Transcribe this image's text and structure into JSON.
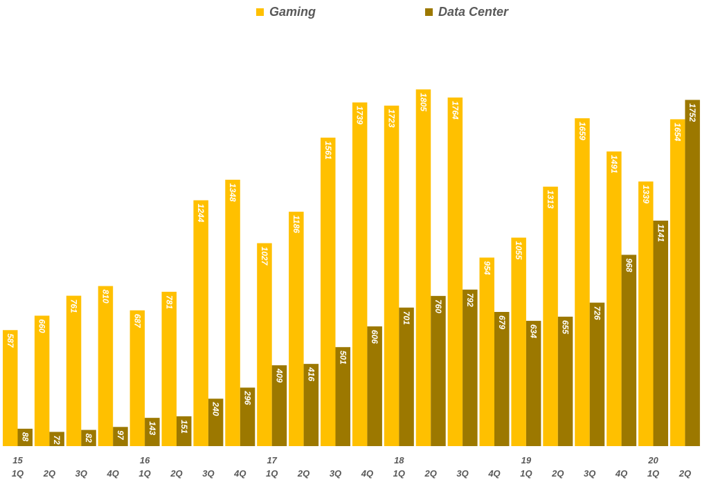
{
  "legend": {
    "gaming": "Gaming",
    "data_center": "Data Center"
  },
  "colors": {
    "gaming": "#FFC000",
    "data_center": "#9C7800",
    "bar_label": "#FFFFFF",
    "axis_text": "#595959"
  },
  "chart_data": {
    "type": "bar",
    "categories": [
      "15 1Q",
      "2Q",
      "3Q",
      "4Q",
      "16 1Q",
      "2Q",
      "3Q",
      "4Q",
      "17 1Q",
      "2Q",
      "3Q",
      "4Q",
      "18 1Q",
      "2Q",
      "3Q",
      "4Q",
      "19 1Q",
      "2Q",
      "3Q",
      "4Q",
      "20 1Q",
      "2Q"
    ],
    "year_labels": [
      "15",
      "",
      "",
      "",
      "16",
      "",
      "",
      "",
      "17",
      "",
      "",
      "",
      "18",
      "",
      "",
      "",
      "19",
      "",
      "",
      "",
      "20",
      ""
    ],
    "quarter_labels": [
      "1Q",
      "2Q",
      "3Q",
      "4Q",
      "1Q",
      "2Q",
      "3Q",
      "4Q",
      "1Q",
      "2Q",
      "3Q",
      "4Q",
      "1Q",
      "2Q",
      "3Q",
      "4Q",
      "1Q",
      "2Q",
      "3Q",
      "4Q",
      "1Q",
      "2Q"
    ],
    "series": [
      {
        "name": "Gaming",
        "values": [
          587,
          660,
          761,
          810,
          687,
          781,
          1244,
          1348,
          1027,
          1186,
          1561,
          1739,
          1723,
          1805,
          1764,
          954,
          1055,
          1313,
          1659,
          1491,
          1339,
          1654
        ]
      },
      {
        "name": "Data Center",
        "values": [
          88,
          72,
          82,
          97,
          143,
          151,
          240,
          296,
          409,
          416,
          501,
          606,
          701,
          760,
          792,
          679,
          634,
          655,
          726,
          968,
          1141,
          1752
        ]
      }
    ],
    "ylim": [
      0,
      1820
    ],
    "grid": false,
    "legend_position": "top"
  }
}
